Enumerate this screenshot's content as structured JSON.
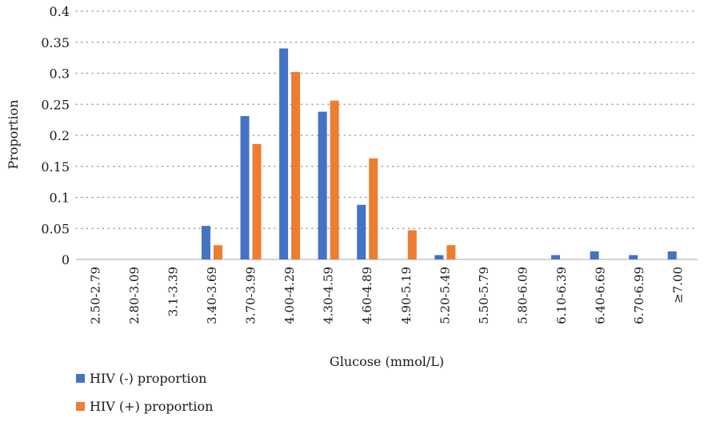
{
  "chart_data": {
    "type": "bar",
    "xlabel": "Glucose (mmol/L)",
    "ylabel": "Proportion",
    "ylim": [
      0,
      0.4
    ],
    "yticks": [
      0,
      0.05,
      0.1,
      0.15,
      0.2,
      0.25,
      0.3,
      0.35,
      0.4
    ],
    "ytick_labels": [
      "0",
      "0.05",
      "0.1",
      "0.15",
      "0.2",
      "0.25",
      "0.3",
      "0.35",
      "0.4"
    ],
    "grid": "horizontal dotted",
    "legend_position": "bottom-left",
    "categories": [
      "2.50-2.79",
      "2.80-3.09",
      "3.1-3.39",
      "3.40-3.69",
      "3.70-3.99",
      "4.00-4.29",
      "4.30-4.59",
      "4.60-4.89",
      "4.90-5.19",
      "5.20-5.49",
      "5.50-5.79",
      "5.80-6.09",
      "6.10-6.39",
      "6.40-6.69",
      "6.70-6.99",
      "≥7.00"
    ],
    "series": [
      {
        "name": "HIV (-) proportion",
        "color": "#4472C4",
        "values": [
          0,
          0,
          0,
          0.054,
          0.231,
          0.34,
          0.238,
          0.088,
          0,
          0.007,
          0,
          0,
          0.007,
          0.013,
          0.007,
          0.013
        ]
      },
      {
        "name": "HIV (+) proportion",
        "color": "#ED7D31",
        "values": [
          0,
          0,
          0,
          0.023,
          0.186,
          0.302,
          0.256,
          0.163,
          0.047,
          0.023,
          0,
          0,
          0,
          0,
          0,
          0
        ]
      }
    ]
  }
}
